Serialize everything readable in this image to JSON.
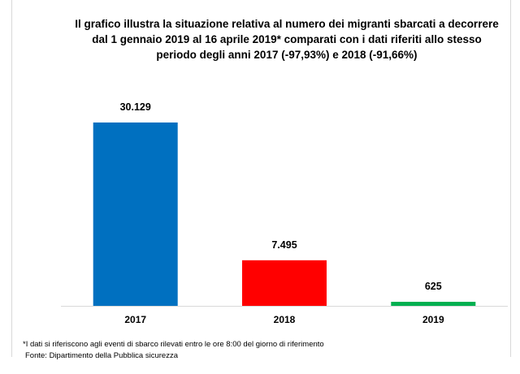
{
  "title": "Il grafico illustra la situazione relativa al numero dei migranti sbarcati a decorrere dal 1 gennaio 2019 al 16 aprile 2019* comparati con i dati riferiti allo stesso periodo degli anni 2017 (-97,93%) e 2018 (-91,66%)",
  "chart_data": {
    "type": "bar",
    "categories": [
      "2017",
      "2018",
      "2019"
    ],
    "values": [
      30129,
      7495,
      625
    ],
    "value_labels": [
      "30.129",
      "7.495",
      "625"
    ],
    "colors": [
      "#0070c0",
      "#ff0000",
      "#00b050"
    ],
    "ylim": [
      0,
      30129
    ],
    "grid": false,
    "legend": "none"
  },
  "footnote": "*I dati si riferiscono agli eventi di sbarco rilevati entro le ore 8:00 del giorno di riferimento",
  "source": "Fonte: Dipartimento della Pubblica sicurezza"
}
